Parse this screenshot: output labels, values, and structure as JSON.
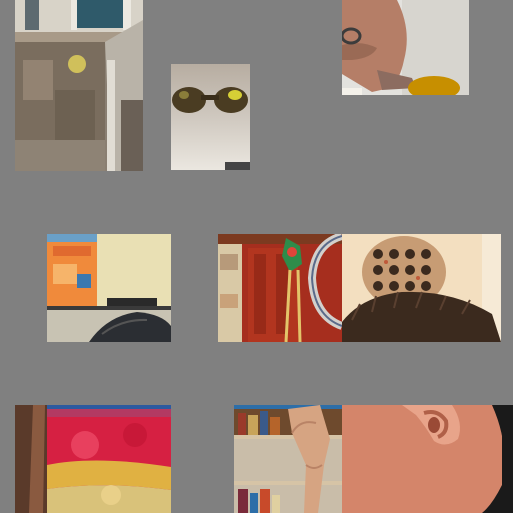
{
  "scene": {
    "background": "#808080",
    "description_hidden": "",
    "tiles": [
      {
        "name": "building-facade",
        "palette": [
          "#7a6d5e",
          "#a89a88",
          "#d8d3c8",
          "#2f5a6a",
          "#e6d55a"
        ]
      },
      {
        "name": "sunglasses",
        "palette": [
          "#c4bdb3",
          "#4a3c22",
          "#d6cf36",
          "#e6e1d9"
        ]
      },
      {
        "name": "hand-with-ring",
        "palette": [
          "#e3e2de",
          "#b57e67",
          "#c78f00",
          "#8c6c60"
        ]
      },
      {
        "name": "kitchen-shelf",
        "palette": [
          "#e5d9a7",
          "#e06a2f",
          "#f08a3b",
          "#c8c3b3",
          "#2a2a2a"
        ]
      },
      {
        "name": "red-door-with-decor",
        "palette": [
          "#a62e1e",
          "#d3d0cc",
          "#2e8c4a",
          "#d9c9a6",
          "#7c3a20"
        ]
      },
      {
        "name": "wine-rack-and-hair",
        "palette": [
          "#f3dfc0",
          "#c79c74",
          "#3b2a1e",
          "#7b5b45"
        ]
      },
      {
        "name": "tie-dye-shirt",
        "palette": [
          "#d62042",
          "#e0b142",
          "#2c5aa0",
          "#5a3a2a"
        ]
      },
      {
        "name": "bookshelf-and-hand",
        "palette": [
          "#d6a482",
          "#c9bda9",
          "#6e4a2d",
          "#2d6ea8"
        ]
      },
      {
        "name": "ear-close-up",
        "palette": [
          "#d4856a",
          "#e8a48a",
          "#1a1a1a"
        ]
      }
    ]
  }
}
